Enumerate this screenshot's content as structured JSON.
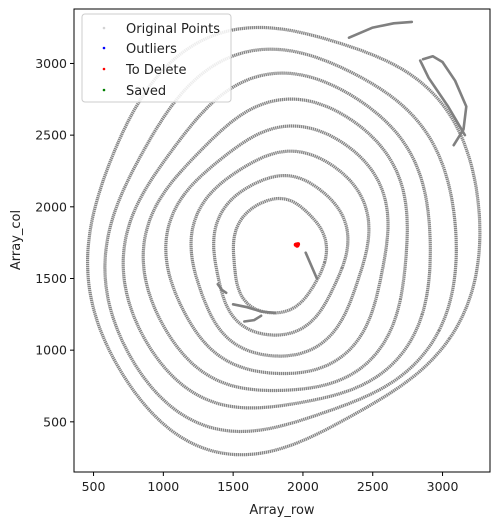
{
  "chart_data": {
    "type": "scatter",
    "title": "",
    "xlabel": "Array_row",
    "ylabel": "Array_col",
    "xlim": [
      360,
      3340
    ],
    "ylim": [
      150,
      3380
    ],
    "x_ticks": [
      500,
      1000,
      1500,
      2000,
      2500,
      3000
    ],
    "y_ticks": [
      500,
      1000,
      1500,
      2000,
      2500,
      3000
    ],
    "x_tick_labels": [
      "500",
      "1000",
      "1500",
      "2000",
      "2500",
      "3000"
    ],
    "y_tick_labels": [
      "500",
      "1000",
      "1500",
      "2000",
      "2500",
      "3000"
    ],
    "grid": false,
    "legend_position": "upper-left",
    "legend": [
      {
        "label": "Original Points",
        "color": "#d3d3d3"
      },
      {
        "label": "Outliers",
        "color": "#0000ff"
      },
      {
        "label": "To Delete",
        "color": "#ff0000"
      },
      {
        "label": "Saved",
        "color": "#008000"
      }
    ],
    "series": [
      {
        "name": "Original Points",
        "color": "#808080",
        "rings": [
          {
            "cx": 1840,
            "cy": 1780,
            "rx": 1370,
            "ry": 1500,
            "rot": -30
          },
          {
            "cx": 1840,
            "cy": 1740,
            "rx": 1230,
            "ry": 1340,
            "rot": -28
          },
          {
            "cx": 1840,
            "cy": 1720,
            "rx": 1080,
            "ry": 1180,
            "rot": -25
          },
          {
            "cx": 1840,
            "cy": 1700,
            "rx": 930,
            "ry": 1030,
            "rot": -22
          },
          {
            "cx": 1840,
            "cy": 1690,
            "rx": 780,
            "ry": 870,
            "rot": -18
          },
          {
            "cx": 1840,
            "cy": 1680,
            "rx": 620,
            "ry": 720,
            "rot": -15
          },
          {
            "cx": 1830,
            "cy": 1670,
            "rx": 470,
            "ry": 560,
            "rot": -12
          },
          {
            "cx": 1820,
            "cy": 1660,
            "rx": 330,
            "ry": 400,
            "rot": -8
          }
        ],
        "extra_paths": [
          [
            [
              2330,
              3180
            ],
            [
              2500,
              3250
            ],
            [
              2650,
              3280
            ],
            [
              2780,
              3290
            ]
          ],
          [
            [
              2860,
              3030
            ],
            [
              2930,
              3050
            ],
            [
              3000,
              3010
            ],
            [
              3090,
              2880
            ],
            [
              3170,
              2700
            ],
            [
              3150,
              2540
            ],
            [
              3080,
              2430
            ]
          ],
          [
            [
              2840,
              3020
            ],
            [
              2900,
              2900
            ],
            [
              3040,
              2700
            ],
            [
              3100,
              2600
            ],
            [
              3160,
              2500
            ]
          ],
          [
            [
              1390,
              1460
            ],
            [
              1420,
              1420
            ],
            [
              1450,
              1400
            ]
          ],
          [
            [
              1500,
              1320
            ],
            [
              1600,
              1300
            ],
            [
              1700,
              1270
            ],
            [
              1800,
              1260
            ]
          ],
          [
            [
              1580,
              1200
            ],
            [
              1650,
              1210
            ],
            [
              1700,
              1240
            ]
          ],
          [
            [
              2020,
              1680
            ],
            [
              2060,
              1590
            ],
            [
              2100,
              1500
            ]
          ]
        ]
      },
      {
        "name": "Outliers",
        "color": "#0000ff",
        "points": []
      },
      {
        "name": "To Delete",
        "color": "#ff0000",
        "points": [
          [
            1948,
            1735
          ],
          [
            1955,
            1738
          ],
          [
            1962,
            1732
          ],
          [
            1958,
            1728
          ],
          [
            1965,
            1740
          ]
        ]
      },
      {
        "name": "Saved",
        "color": "#008000",
        "points": []
      }
    ]
  }
}
